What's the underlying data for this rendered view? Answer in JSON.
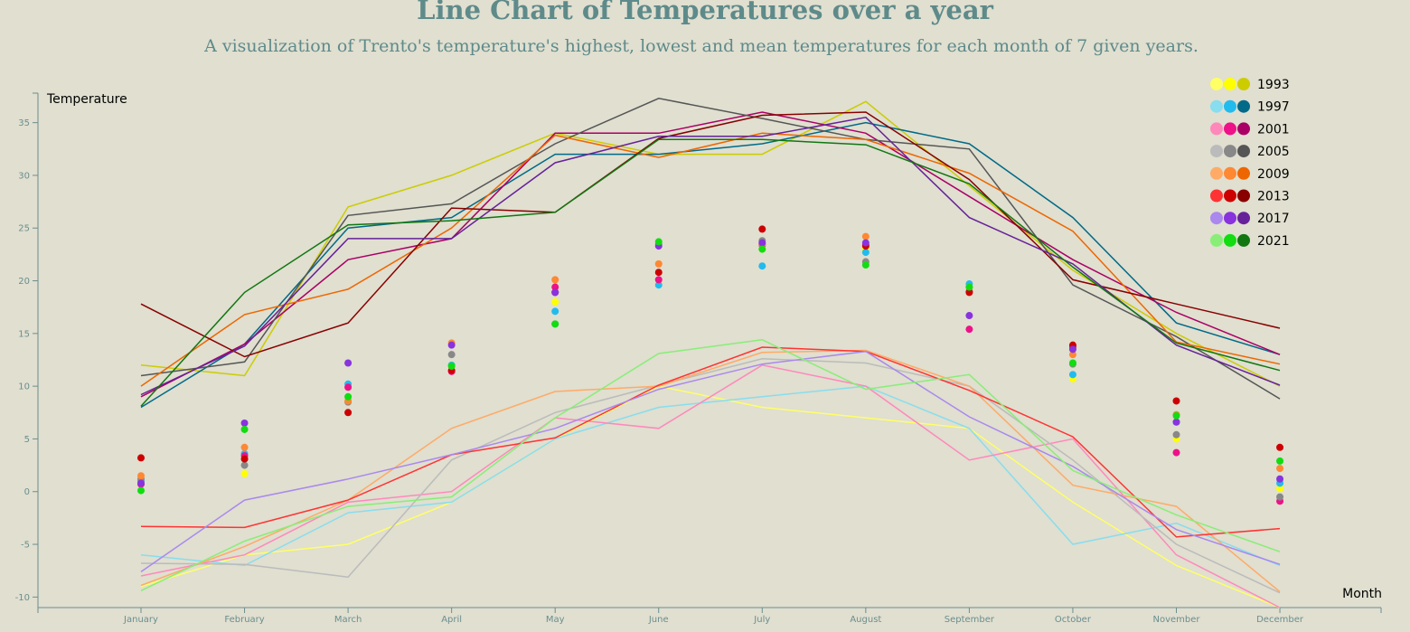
{
  "title": "Line Chart of Temperatures over a year",
  "subtitle": "A visualization of Trento's temperature's highest, lowest and mean temperatures for each month of 7 given years.",
  "chart_data": {
    "type": "line",
    "xlabel": "Month",
    "ylabel": "Temperature",
    "categories": [
      "January",
      "February",
      "March",
      "April",
      "May",
      "June",
      "July",
      "August",
      "September",
      "October",
      "November",
      "December"
    ],
    "yticks": [
      -10,
      -5,
      0,
      5,
      10,
      15,
      20,
      25,
      30,
      35
    ],
    "ylim": [
      -11,
      37.8
    ],
    "legend_position": "top-right",
    "series": [
      {
        "name": "1993",
        "colors": {
          "min": "#ffff66",
          "mean": "#ffff00",
          "max": "#cccc00"
        },
        "max": [
          12,
          11,
          27,
          30,
          34,
          32,
          32,
          37,
          29,
          21,
          15,
          10
        ],
        "mean": [
          null,
          1.7,
          8.5,
          12,
          18,
          20,
          23,
          23,
          19.6,
          10.7,
          5,
          0.3
        ],
        "min": [
          -9,
          -6,
          -5,
          -1,
          5,
          10,
          8,
          7,
          6,
          -1,
          -7,
          -11
        ]
      },
      {
        "name": "1997",
        "colors": {
          "min": "#88ddee",
          "mean": "#22bbee",
          "max": "#006a88"
        },
        "max": [
          8,
          14,
          25,
          26,
          32,
          32,
          33,
          35,
          33,
          26,
          16,
          13
        ],
        "mean": [
          1,
          3.6,
          10.2,
          12,
          17.1,
          19.6,
          21.4,
          22.7,
          19.7,
          11.1,
          6.6,
          0.8
        ],
        "min": [
          -6,
          -7,
          -2,
          -1,
          5,
          8,
          9,
          10,
          6,
          -5,
          -3,
          -7
        ]
      },
      {
        "name": "2001",
        "colors": {
          "min": "#ff88bb",
          "mean": "#ee1188",
          "max": "#aa0066"
        },
        "max": [
          9,
          14,
          22,
          24,
          34,
          34,
          36,
          34,
          28,
          22,
          17,
          13
        ],
        "mean": [
          0.7,
          3.4,
          9.9,
          11.4,
          19.4,
          20.1,
          23.4,
          23.4,
          15.4,
          13.7,
          3.7,
          -0.9
        ],
        "min": [
          -8,
          -6,
          -1,
          0,
          7,
          6,
          12,
          10,
          3,
          5,
          -6,
          -11
        ]
      },
      {
        "name": "2005",
        "colors": {
          "min": "#bbbbbb",
          "mean": "#888888",
          "max": "#555555"
        },
        "max": [
          11,
          12.3,
          26.2,
          27.3,
          33,
          37.3,
          35.4,
          33.4,
          32.5,
          19.6,
          14.7,
          8.8
        ],
        "mean": [
          1.2,
          2.5,
          8.5,
          13,
          15.9,
          23.5,
          23.8,
          21.8,
          19,
          12.1,
          5.4,
          -0.5
        ],
        "min": [
          -6.8,
          -6.9,
          -8.1,
          3,
          7.5,
          10.1,
          12.6,
          12.2,
          10,
          3,
          -5,
          -9.6
        ]
      },
      {
        "name": "2009",
        "colors": {
          "min": "#ffaa66",
          "mean": "#ff8833",
          "max": "#ee6600"
        },
        "max": [
          10,
          16.8,
          19.2,
          25,
          33.8,
          31.7,
          34,
          33.4,
          30.2,
          24.7,
          14.2,
          12.1
        ],
        "mean": [
          1.5,
          4.2,
          8.6,
          14.1,
          20.1,
          21.6,
          23.5,
          24.2,
          19.4,
          13,
          7.3,
          2.2
        ],
        "min": [
          -8.9,
          -5.2,
          -0.8,
          6,
          9.5,
          10,
          13.2,
          13.4,
          10,
          0.6,
          -1.4,
          -9.5
        ]
      },
      {
        "name": "2013",
        "colors": {
          "min": "#ff3333",
          "mean": "#cc0000",
          "max": "#880000"
        },
        "max": [
          17.8,
          12.8,
          16,
          26.9,
          26.5,
          33.5,
          35.7,
          36,
          29.6,
          20.1,
          17.8,
          15.5
        ],
        "mean": [
          3.2,
          3.1,
          7.5,
          11.5,
          18.9,
          20.8,
          24.9,
          23.3,
          18.9,
          13.9,
          8.6,
          4.2
        ],
        "min": [
          -3.3,
          -3.4,
          -0.8,
          3.5,
          5.1,
          10.1,
          13.7,
          13.3,
          9.6,
          5.2,
          -4.3,
          -3.5
        ]
      },
      {
        "name": "2017",
        "colors": {
          "min": "#aa88ee",
          "mean": "#8833dd",
          "max": "#662299"
        },
        "max": [
          9.2,
          13.8,
          24,
          24,
          31.2,
          33.7,
          33.7,
          35.5,
          26,
          21.6,
          13.9,
          10.1
        ],
        "mean": [
          0.8,
          6.5,
          12.2,
          13.9,
          18.9,
          23.3,
          23.6,
          23.6,
          16.7,
          13.5,
          6.6,
          1.2
        ],
        "min": [
          -7.6,
          -0.8,
          1.2,
          3.5,
          6,
          9.7,
          12.1,
          13.3,
          7.1,
          2.4,
          -3.6,
          -6.9
        ]
      },
      {
        "name": "2021",
        "colors": {
          "min": "#88ee77",
          "mean": "#11dd11",
          "max": "#117711"
        },
        "max": [
          8.1,
          18.9,
          25.3,
          25.7,
          26.5,
          33.4,
          33.4,
          32.9,
          29.2,
          21.3,
          14.1,
          11.5
        ],
        "mean": [
          0.1,
          5.9,
          9,
          11.9,
          15.9,
          23.7,
          23,
          21.5,
          19.4,
          12.2,
          7.2,
          2.9
        ],
        "min": [
          -9.4,
          -4.7,
          -1.4,
          -0.5,
          7,
          13.1,
          14.4,
          9.7,
          11.1,
          2,
          -2.2,
          -5.7
        ]
      }
    ]
  }
}
